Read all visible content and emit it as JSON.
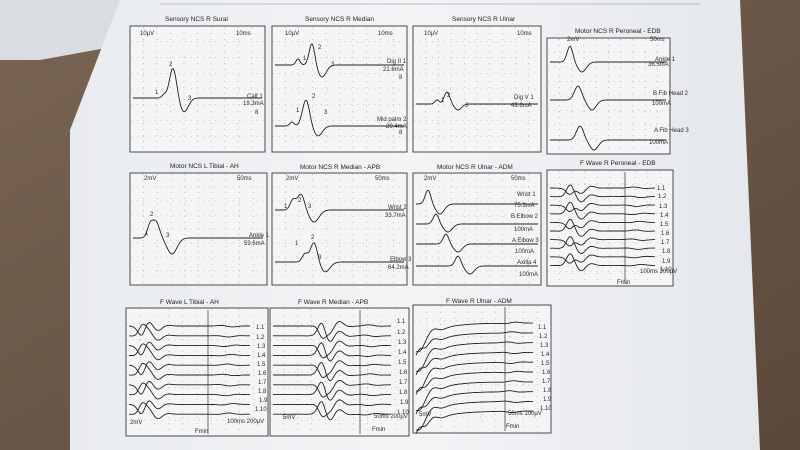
{
  "panels": [
    {
      "title": "Sensory NCS R Sural",
      "labels": [
        "10µV",
        "10ms",
        "2",
        "1",
        "3",
        "Calf 1",
        "19.3mA",
        "8"
      ]
    },
    {
      "title": "Sensory NCS R Median",
      "labels": [
        "10µV",
        "10ms",
        "2",
        "1",
        "3",
        "Dig II 1",
        "21.6mA",
        "8",
        "2",
        "1",
        "3",
        "Mid palm 2",
        "29.4mA",
        "8"
      ]
    },
    {
      "title": "Sensory NCS R Ulnar",
      "labels": [
        "10µV",
        "10ms",
        "2",
        "1",
        "3",
        "Dig V 1",
        "43.6mA"
      ]
    },
    {
      "title": "Motor NCS R Peroneal - EDB",
      "labels": [
        "2mV",
        "50ms",
        "Ankle 1",
        "36.5mA",
        "B Fib Head 2",
        "100mA",
        "A Fib Head 3",
        "100mA"
      ]
    },
    {
      "title": "Motor NCS L Tibial - AH",
      "labels": [
        "2mV",
        "50ms",
        "2",
        "1",
        "3",
        "Ankle 1",
        "59.6mA"
      ]
    },
    {
      "title": "Motor NCS R Median - APB",
      "labels": [
        "2mV",
        "50ms",
        "2",
        "1",
        "3",
        "Wrist 2",
        "33.7mA",
        "2",
        "1",
        "3",
        "Elbow 3",
        "64.2mA"
      ]
    },
    {
      "title": "Motor NCS R Ulnar - ADM",
      "labels": [
        "2mV",
        "50ms",
        "Wrist 1",
        "75.3mA",
        "B Elbow 2",
        "100mA",
        "A Elbow 3",
        "100mA",
        "Axilla 4",
        "100mA"
      ]
    },
    {
      "title": "F Wave R Peroneal - EDB",
      "labels": [
        "1.1",
        "1.2",
        "1.3",
        "1.4",
        "1.5",
        "1.6",
        "1.7",
        "1.8",
        "1.9",
        "1.10",
        "100ms 200µV",
        "Fmin"
      ]
    },
    {
      "title": "F Wave L Tibial - AH",
      "labels": [
        "1.1",
        "1.2",
        "1.3",
        "1.4",
        "1.5",
        "1.6",
        "1.7",
        "1.8",
        "1.9",
        "1.10",
        "2mV",
        "100ms 200µV",
        "Fmin"
      ]
    },
    {
      "title": "F Wave R Median - APB",
      "labels": [
        "1.1",
        "1.2",
        "1.3",
        "1.4",
        "1.5",
        "1.6",
        "1.7",
        "1.8",
        "1.9",
        "1.10",
        "5mV",
        "50ms 200µV",
        "Fmin"
      ]
    },
    {
      "title": "F Wave R Ulnar - ADM",
      "labels": [
        "1.1",
        "1.2",
        "1.3",
        "1.4",
        "1.5",
        "1.6",
        "1.7",
        "1.8",
        "1.9",
        "1.10",
        "5mV",
        "50ms 100µV",
        "Fmin"
      ]
    }
  ]
}
